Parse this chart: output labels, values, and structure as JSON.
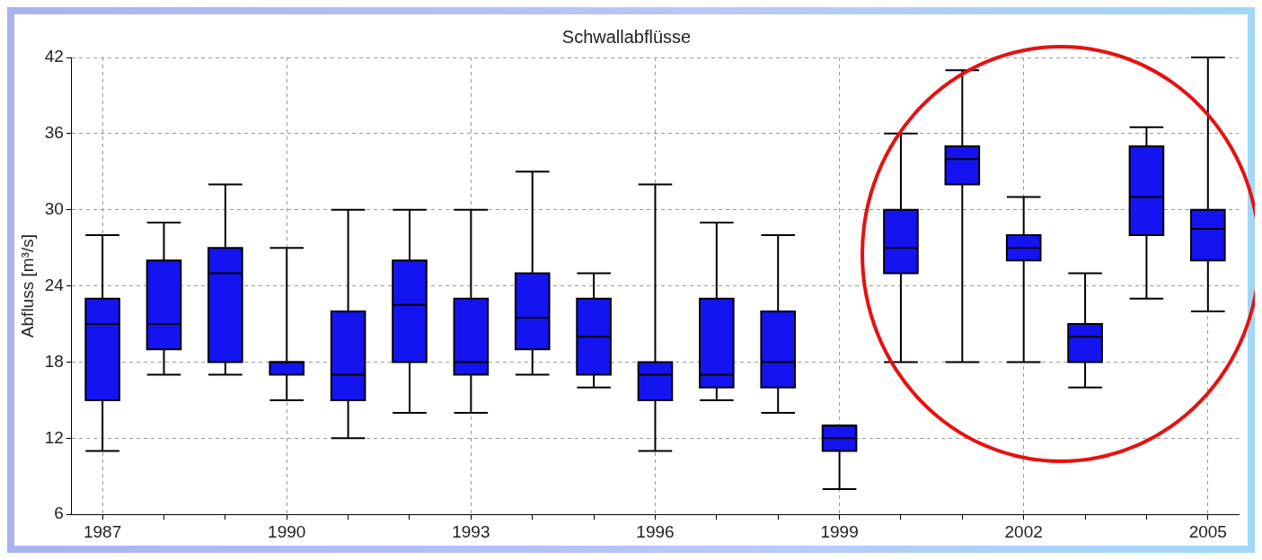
{
  "chart_data": {
    "type": "box",
    "title": "Schwallabflüsse",
    "ylabel": "Abfluss [m³/s]",
    "categories": [
      "1987",
      null,
      null,
      "1990",
      null,
      null,
      "1993",
      null,
      null,
      "1996",
      null,
      null,
      "1999",
      null,
      null,
      "2002",
      null,
      null,
      "2005"
    ],
    "color": "#1414f0",
    "ylim": [
      6,
      42
    ],
    "yticks": [
      6,
      12,
      18,
      24,
      30,
      36,
      42
    ],
    "grid": true,
    "boxes": [
      {
        "low": 11,
        "q1": 15,
        "median": 21,
        "q3": 23,
        "high": 28
      },
      {
        "low": 17,
        "q1": 19,
        "median": 21,
        "q3": 26,
        "high": 29
      },
      {
        "low": 17,
        "q1": 18,
        "median": 25,
        "q3": 27,
        "high": 32
      },
      {
        "low": 15,
        "q1": 17,
        "median": 18,
        "q3": 18,
        "high": 27
      },
      {
        "low": 12,
        "q1": 15,
        "median": 17,
        "q3": 22,
        "high": 30
      },
      {
        "low": 14,
        "q1": 18,
        "median": 22.5,
        "q3": 26,
        "high": 30
      },
      {
        "low": 14,
        "q1": 17,
        "median": 18,
        "q3": 23,
        "high": 30
      },
      {
        "low": 17,
        "q1": 19,
        "median": 21.5,
        "q3": 25,
        "high": 33
      },
      {
        "low": 16,
        "q1": 17,
        "median": 20,
        "q3": 23,
        "high": 25
      },
      {
        "low": 11,
        "q1": 15,
        "median": 17,
        "q3": 18,
        "high": 32
      },
      {
        "low": 15,
        "q1": 16,
        "median": 17,
        "q3": 23,
        "high": 29
      },
      {
        "low": 14,
        "q1": 16,
        "median": 18,
        "q3": 22,
        "high": 28
      },
      {
        "low": 8,
        "q1": 11,
        "median": 12,
        "q3": 13,
        "high": 13
      },
      {
        "low": 18,
        "q1": 25,
        "median": 27,
        "q3": 30,
        "high": 36
      },
      {
        "low": 18,
        "q1": 32,
        "median": 34,
        "q3": 35,
        "high": 41
      },
      {
        "low": 18,
        "q1": 26,
        "median": 27,
        "q3": 28,
        "high": 31
      },
      {
        "low": 16,
        "q1": 18,
        "median": 20,
        "q3": 21,
        "high": 25
      },
      {
        "low": 23,
        "q1": 28,
        "median": 31,
        "q3": 35,
        "high": 36.5
      },
      {
        "low": 22,
        "q1": 26,
        "median": 28.5,
        "q3": 30,
        "high": 42
      }
    ]
  }
}
